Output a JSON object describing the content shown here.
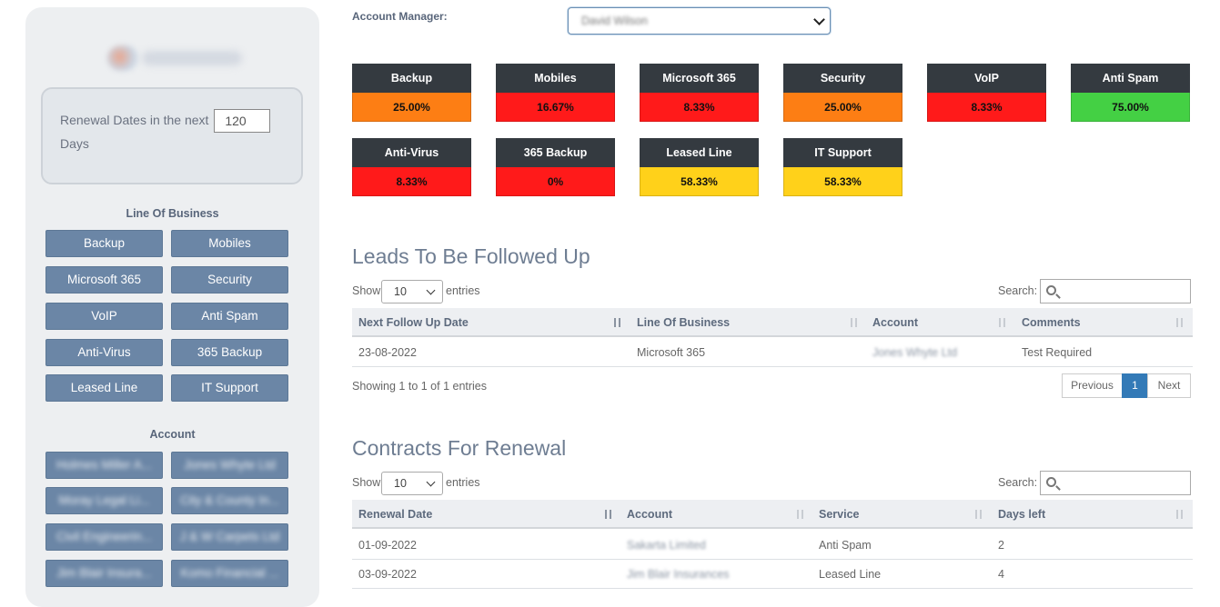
{
  "sidebar": {
    "renewal": {
      "label_prefix": "Renewal Dates in the next",
      "days_value": "120",
      "label_suffix": "Days"
    },
    "line_of_business": {
      "title": "Line Of Business",
      "items": [
        "Backup",
        "Mobiles",
        "Microsoft 365",
        "Security",
        "VoIP",
        "Anti Spam",
        "Anti-Virus",
        "365 Backup",
        "Leased Line",
        "IT Support"
      ]
    },
    "account": {
      "title": "Account",
      "items": [
        "Holmes Miller A...",
        "Jones Whyte Ltd",
        "Moray Legal Li...",
        "City & County In...",
        "Civil Engineerin...",
        "J & W Carpets Ltd",
        "Jim Blair Insura...",
        "Komo Financial ..."
      ]
    }
  },
  "account_manager": {
    "label": "Account Manager:",
    "selected": "David Wilson"
  },
  "tiles": [
    {
      "name": "Backup",
      "value": "25.00%",
      "color": "#fd7e14"
    },
    {
      "name": "Mobiles",
      "value": "16.67%",
      "color": "#ff1a1a"
    },
    {
      "name": "Microsoft 365",
      "value": "8.33%",
      "color": "#ff1a1a"
    },
    {
      "name": "Security",
      "value": "25.00%",
      "color": "#fd7e14"
    },
    {
      "name": "VoIP",
      "value": "8.33%",
      "color": "#ff1a1a"
    },
    {
      "name": "Anti Spam",
      "value": "75.00%",
      "color": "#44d044"
    },
    {
      "name": "Anti-Virus",
      "value": "8.33%",
      "color": "#ff1a1a"
    },
    {
      "name": "365 Backup",
      "value": "0%",
      "color": "#ff1a1a"
    },
    {
      "name": "Leased Line",
      "value": "58.33%",
      "color": "#ffd11a"
    },
    {
      "name": "IT Support",
      "value": "58.33%",
      "color": "#ffd11a"
    }
  ],
  "leads": {
    "title": "Leads To Be Followed Up",
    "show_label": "Show",
    "length_value": "10",
    "entries_label": "entries",
    "search_label": "Search:",
    "columns": [
      "Next Follow Up Date",
      "Line Of Business",
      "Account",
      "Comments"
    ],
    "rows": [
      [
        "23-08-2022",
        "Microsoft 365",
        "Jones Whyte Ltd",
        "Test Required"
      ]
    ],
    "info": "Showing 1 to 1 of 1 entries",
    "pagination": {
      "previous": "Previous",
      "page": "1",
      "next": "Next"
    }
  },
  "contracts": {
    "title": "Contracts For Renewal",
    "show_label": "Show",
    "length_value": "10",
    "entries_label": "entries",
    "search_label": "Search:",
    "columns": [
      "Renewal Date",
      "Account",
      "Service",
      "Days left"
    ],
    "rows": [
      [
        "01-09-2022",
        "Sakarta Limited",
        "Anti Spam",
        "2"
      ],
      [
        "03-09-2022",
        "Jim Blair Insurances",
        "Leased Line",
        "4"
      ]
    ]
  }
}
